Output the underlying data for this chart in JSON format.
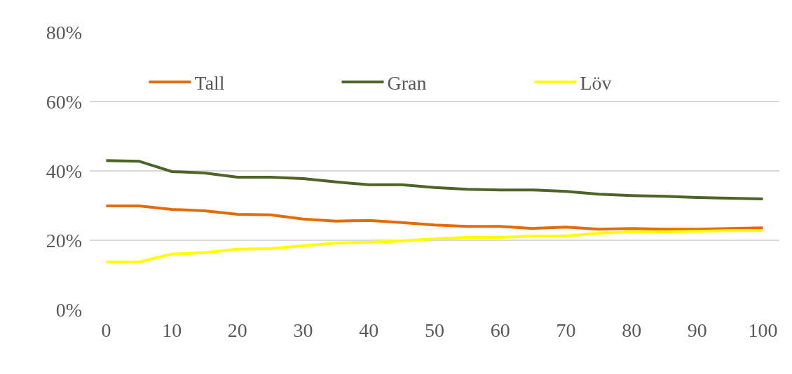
{
  "chart_data": {
    "type": "line",
    "x": [
      0,
      5,
      10,
      15,
      20,
      25,
      30,
      35,
      40,
      45,
      50,
      55,
      60,
      65,
      70,
      75,
      80,
      85,
      90,
      95,
      100
    ],
    "series": [
      {
        "name": "Tall",
        "color": "#e36c09",
        "values": [
          29.9,
          29.9,
          28.9,
          28.5,
          27.5,
          27.3,
          26.1,
          25.5,
          25.7,
          25.1,
          24.4,
          24.0,
          24.0,
          23.4,
          23.8,
          23.2,
          23.4,
          23.2,
          23.2,
          23.4,
          23.6
        ]
      },
      {
        "name": "Gran",
        "color": "#4f6228",
        "values": [
          43.0,
          42.8,
          39.8,
          39.4,
          38.2,
          38.2,
          37.8,
          36.8,
          36.0,
          36.0,
          35.2,
          34.7,
          34.5,
          34.5,
          34.1,
          33.3,
          32.9,
          32.7,
          32.3,
          32.1,
          31.9
        ]
      },
      {
        "name": "Löv",
        "color": "#ffff00",
        "values": [
          13.7,
          13.7,
          16.0,
          16.4,
          17.4,
          17.6,
          18.4,
          19.2,
          19.4,
          19.8,
          20.4,
          20.8,
          20.8,
          21.2,
          21.2,
          22.0,
          22.4,
          22.4,
          22.6,
          22.8,
          22.8
        ]
      }
    ],
    "xlim": [
      -2.5,
      102.5
    ],
    "xticks": [
      0,
      10,
      20,
      30,
      40,
      50,
      60,
      70,
      80,
      90,
      100
    ],
    "ylim": [
      0,
      80
    ],
    "yticks": [
      {
        "value": 0,
        "label": "0%"
      },
      {
        "value": 20,
        "label": "20%"
      },
      {
        "value": 40,
        "label": "40%"
      },
      {
        "value": 60,
        "label": "60%"
      },
      {
        "value": 80,
        "label": "80%"
      }
    ],
    "grid": "y",
    "legend": "top",
    "marker": "none",
    "line_style": "solid"
  }
}
